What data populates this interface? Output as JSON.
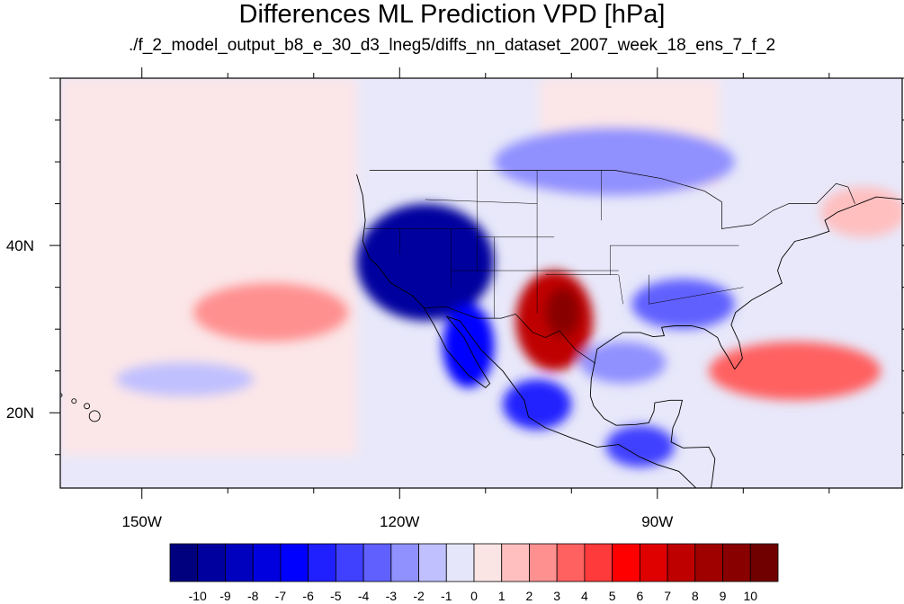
{
  "title": "Differences ML Prediction VPD [hPa]",
  "subtitle": "./f_2_model_output_b8_e_30_d3_lneg5/diffs_nn_dataset_2007_week_18_ens_7_f_2",
  "map": {
    "lon_range": [
      -159.5,
      -61.5
    ],
    "lat_range": [
      11,
      60
    ],
    "x_ticks": [
      {
        "label": "150W",
        "lon": -150
      },
      {
        "label": "120W",
        "lon": -120
      },
      {
        "label": "90W",
        "lon": -90
      }
    ],
    "y_ticks": [
      {
        "label": "40N",
        "lat": 40
      },
      {
        "label": "20N",
        "lat": 20
      }
    ],
    "regions": [
      {
        "name": "great-basin-negative",
        "lon": -117,
        "lat": 38,
        "rlon": 8,
        "rlat": 7,
        "value": -10
      },
      {
        "name": "baja-negative",
        "lon": -112,
        "lat": 28,
        "rlon": 3,
        "rlat": 5,
        "value": -7
      },
      {
        "name": "mexico-plateau-negative",
        "lon": -104,
        "lat": 21,
        "rlon": 4,
        "rlat": 3,
        "value": -6
      },
      {
        "name": "southern-plains-positive",
        "lon": -102,
        "lat": 31,
        "rlon": 4.5,
        "rlat": 6,
        "value": 7
      },
      {
        "name": "southern-plains-core",
        "lon": -101,
        "lat": 32,
        "rlon": 2,
        "rlat": 3,
        "value": 9
      },
      {
        "name": "southeast-negative",
        "lon": -87,
        "lat": 33,
        "rlon": 6,
        "rlat": 3,
        "value": -4
      },
      {
        "name": "gulf-negative",
        "lon": -94,
        "lat": 26,
        "rlon": 5,
        "rlat": 2.5,
        "value": -3
      },
      {
        "name": "central-america-negative",
        "lon": -92,
        "lat": 16,
        "rlon": 4,
        "rlat": 2.5,
        "value": -5
      },
      {
        "name": "east-pacific-positive",
        "lon": -135,
        "lat": 32,
        "rlon": 9,
        "rlat": 3.5,
        "value": 2
      },
      {
        "name": "atlantic-positive",
        "lon": -74,
        "lat": 25,
        "rlon": 10,
        "rlat": 3.5,
        "value": 3
      },
      {
        "name": "northwest-atlantic-positive",
        "lon": -66,
        "lat": 44,
        "rlon": 5,
        "rlat": 3,
        "value": 1
      },
      {
        "name": "canada-negative",
        "lon": -95,
        "lat": 50,
        "rlon": 14,
        "rlat": 4,
        "value": -3
      },
      {
        "name": "west-pacific-negative",
        "lon": -145,
        "lat": 24,
        "rlon": 8,
        "rlat": 2,
        "value": -2
      }
    ]
  },
  "colorbar": {
    "labels": [
      "-10",
      "-9",
      "-8",
      "-7",
      "-6",
      "-5",
      "-4",
      "-3",
      "-2",
      "-1",
      "0",
      "1",
      "2",
      "3",
      "4",
      "5",
      "6",
      "7",
      "8",
      "9",
      "10"
    ],
    "colors": [
      "#00007f",
      "#00009f",
      "#0000bf",
      "#0000df",
      "#0000ff",
      "#2020ff",
      "#4040ff",
      "#6060ff",
      "#9090ff",
      "#c0c0ff",
      "#e6e6fb",
      "#fbe4e4",
      "#ffbfbf",
      "#ff9090",
      "#ff6060",
      "#ff3a3a",
      "#ff0000",
      "#df0000",
      "#bf0000",
      "#9f0000",
      "#880000",
      "#700000"
    ]
  }
}
